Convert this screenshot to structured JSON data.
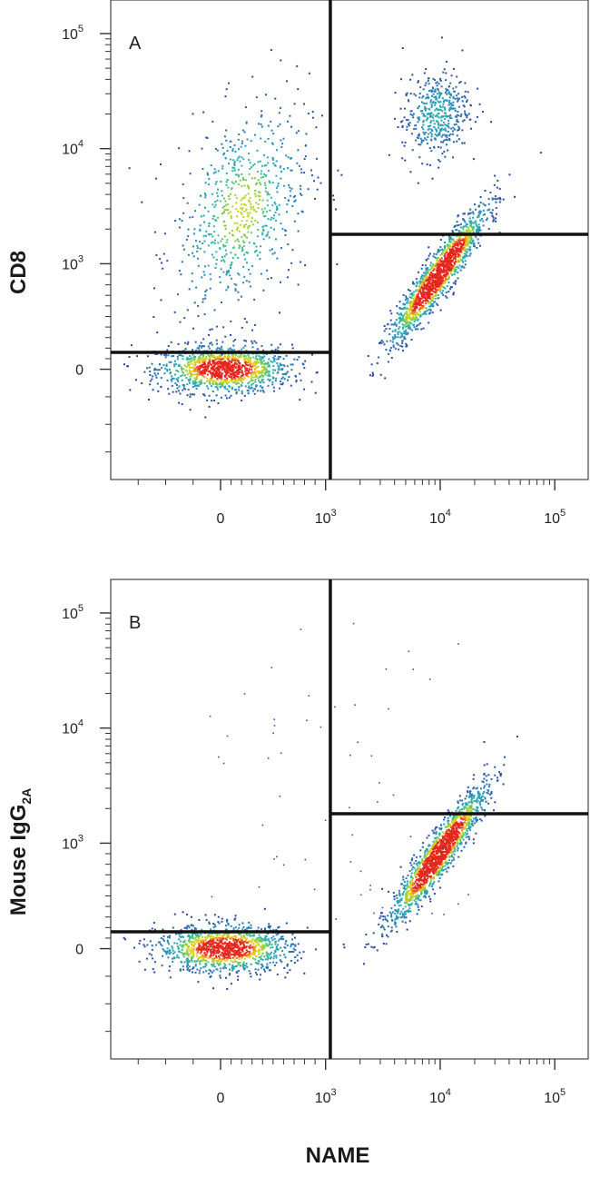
{
  "chart_data": [
    {
      "type": "scatter",
      "style": "flow-cytometry density dot plot with quadrant gates",
      "panel_label": "A",
      "ylabel": "CD8",
      "xlabel": "NAME",
      "x_scale": "biexponential",
      "y_scale": "biexponential",
      "x_ticks": [
        {
          "value": 0,
          "base": "0",
          "exp": ""
        },
        {
          "value": 1000,
          "base": "10",
          "exp": "3"
        },
        {
          "value": 10000,
          "base": "10",
          "exp": "4"
        },
        {
          "value": 100000,
          "base": "10",
          "exp": "5"
        }
      ],
      "y_ticks": [
        {
          "value": 0,
          "base": "0",
          "exp": ""
        },
        {
          "value": 1000,
          "base": "10",
          "exp": "3"
        },
        {
          "value": 10000,
          "base": "10",
          "exp": "4"
        },
        {
          "value": 100000,
          "base": "10",
          "exp": "5"
        }
      ],
      "xlim": [
        -400,
        250000
      ],
      "ylim": [
        -400,
        250000
      ],
      "quadrant_gate": {
        "x": 1100,
        "y_left": 160,
        "y_right": 1800
      },
      "populations": [
        {
          "name": "",
          "x_center": 30,
          "y_center": 10,
          "count": 1200
        },
        {
          "name": "",
          "x_center": 200,
          "y_center": 3000,
          "count": 700
        },
        {
          "name": "",
          "x_center": 9000,
          "y_center": 20000,
          "count": 450
        },
        {
          "name": "",
          "x_center": 9500,
          "y_center": 900,
          "count": 1500
        }
      ],
      "grid": false
    },
    {
      "type": "scatter",
      "style": "flow-cytometry density dot plot with quadrant gates",
      "panel_label": "B",
      "ylabel_main": "Mouse IgG",
      "ylabel_sub": "2A",
      "xlabel": "NAME",
      "x_scale": "biexponential",
      "y_scale": "biexponential",
      "x_ticks": [
        {
          "value": 0,
          "base": "0",
          "exp": ""
        },
        {
          "value": 1000,
          "base": "10",
          "exp": "3"
        },
        {
          "value": 10000,
          "base": "10",
          "exp": "4"
        },
        {
          "value": 100000,
          "base": "10",
          "exp": "5"
        }
      ],
      "y_ticks": [
        {
          "value": 0,
          "base": "0",
          "exp": ""
        },
        {
          "value": 1000,
          "base": "10",
          "exp": "3"
        },
        {
          "value": 10000,
          "base": "10",
          "exp": "4"
        },
        {
          "value": 100000,
          "base": "10",
          "exp": "5"
        }
      ],
      "xlim": [
        -400,
        250000
      ],
      "ylim": [
        -400,
        250000
      ],
      "quadrant_gate": {
        "x": 1100,
        "y_left": 160,
        "y_right": 1800
      },
      "populations": [
        {
          "name": "",
          "x_center": 30,
          "y_center": 10,
          "count": 1200
        },
        {
          "name": "",
          "x_center": 9500,
          "y_center": 900,
          "count": 1500
        }
      ],
      "grid": false
    }
  ],
  "colors": {
    "density_low": "#2a3f9e",
    "density_mid": "#2bb7a0",
    "density_high": "#f0d21a",
    "density_peak": "#e4261c",
    "gate_line": "#111111",
    "axis": "#333333"
  }
}
